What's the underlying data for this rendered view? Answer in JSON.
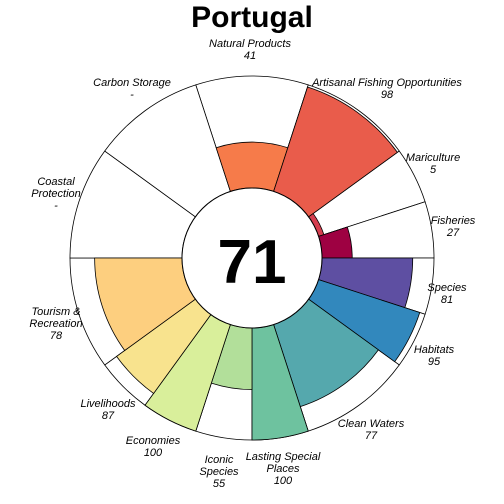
{
  "chart_data": {
    "type": "rose",
    "title": "Portugal",
    "center_score": "71",
    "value_range": [
      0,
      100
    ],
    "segments": [
      {
        "label": "Natural Products",
        "value_text": "41",
        "value": 41,
        "weight": 1,
        "color": "#f67b4a"
      },
      {
        "label": "Artisanal Fishing Opportunities",
        "value_text": "98",
        "value": 98,
        "weight": 1,
        "color": "#e95c4b"
      },
      {
        "label": "Mariculture",
        "value_text": "5",
        "value": 5,
        "weight": 0.5,
        "color": "#d53e4f"
      },
      {
        "label": "Fisheries",
        "value_text": "27",
        "value": 27,
        "weight": 0.5,
        "color": "#9e0142"
      },
      {
        "label": "Species",
        "value_text": "81",
        "value": 81,
        "weight": 0.5,
        "color": "#5e4fa2"
      },
      {
        "label": "Habitats",
        "value_text": "95",
        "value": 95,
        "weight": 0.5,
        "color": "#3288bd"
      },
      {
        "label": "Clean Waters",
        "value_text": "77",
        "value": 77,
        "weight": 1,
        "color": "#55a8ad"
      },
      {
        "label": "Lasting Special Places",
        "value_text": "100",
        "value": 100,
        "weight": 0.5,
        "color": "#6ec29f"
      },
      {
        "label": "Iconic Species",
        "value_text": "55",
        "value": 55,
        "weight": 0.5,
        "color": "#b2df9a"
      },
      {
        "label": "Economies",
        "value_text": "100",
        "value": 100,
        "weight": 0.5,
        "color": "#d9ef9b"
      },
      {
        "label": "Livelihoods",
        "value_text": "87",
        "value": 87,
        "weight": 0.5,
        "color": "#f8e38e"
      },
      {
        "label": "Tourism & Recreation",
        "value_text": "78",
        "value": 78,
        "weight": 1,
        "color": "#fdcf7f"
      },
      {
        "label": "Coastal Protection",
        "value_text": "-",
        "value": null,
        "weight": 1,
        "color": "#ffffff"
      },
      {
        "label": "Carbon Storage",
        "value_text": "-",
        "value": null,
        "weight": 1,
        "color": "#ffffff"
      }
    ]
  }
}
